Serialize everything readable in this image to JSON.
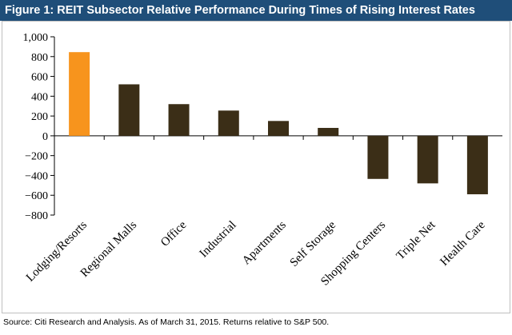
{
  "title": "Figure 1: REIT Subsector Relative Performance During Times of Rising Interest Rates",
  "source_note": "Source: Citi Research and Analysis. As of March 31, 2015.  Returns relative to S&P 500.",
  "colors": {
    "title_bg": "#1f4e79",
    "highlight_bar": "#f7941d",
    "bar": "#3b2e17"
  },
  "chart_data": {
    "type": "bar",
    "categories": [
      "Lodging/Resorts",
      "Regional Malls",
      "Office",
      "Industrial",
      "Apartments",
      "Self Storage",
      "Shopping Centers",
      "Triple Net",
      "Health Care"
    ],
    "values": [
      845,
      520,
      320,
      255,
      150,
      80,
      -435,
      -480,
      -590
    ],
    "highlight_index": 0,
    "ylim": [
      -800,
      1000
    ],
    "yticks": [
      1000,
      800,
      600,
      400,
      200,
      0,
      -200,
      -400,
      -600,
      -800
    ],
    "ytick_labels": [
      "1,000",
      "800",
      "600",
      "400",
      "200",
      "0",
      "−200",
      "−400",
      "−600",
      "−800"
    ],
    "grid": false,
    "legend": "none",
    "xlabel": "",
    "ylabel": ""
  }
}
